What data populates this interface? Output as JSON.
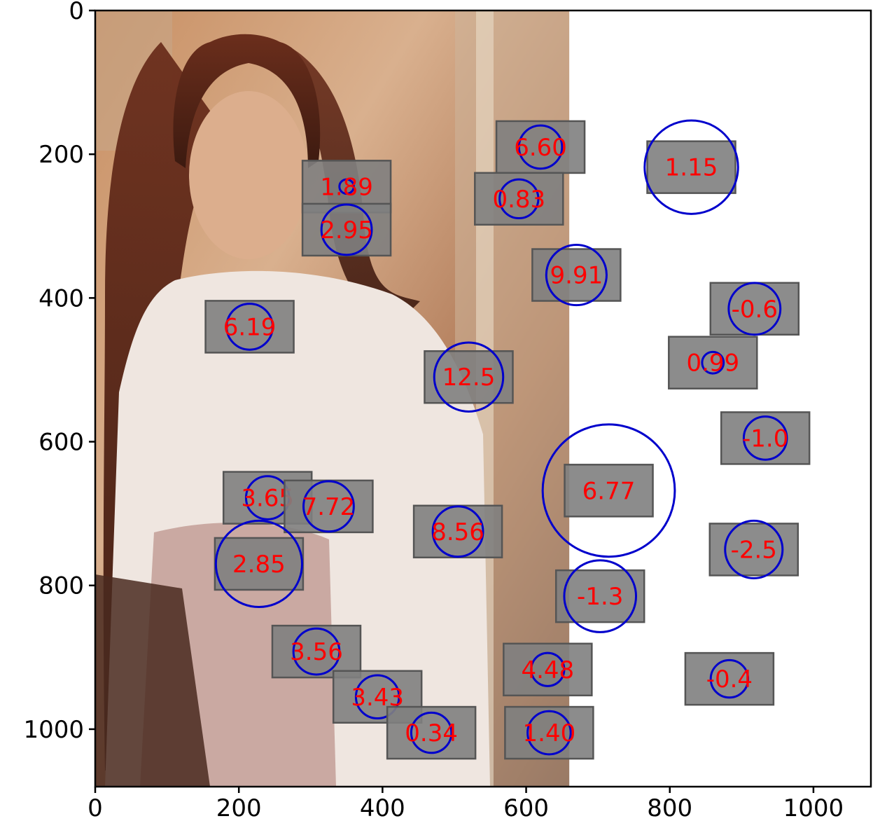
{
  "chart_data": {
    "type": "scatter",
    "title": "",
    "xlabel": "",
    "ylabel": "",
    "xlim": [
      0,
      1080
    ],
    "ylim": [
      1080,
      0
    ],
    "y_inverted": true,
    "grid": false,
    "background_image": {
      "description": "photo",
      "extent_x": [
        0,
        660
      ],
      "extent_y": [
        0,
        1080
      ]
    },
    "xticks": [
      0,
      200,
      400,
      600,
      800,
      1000
    ],
    "yticks": [
      0,
      200,
      400,
      600,
      800,
      1000
    ],
    "label_box_color": "#808080",
    "label_text_color": "#ff0000",
    "circle_color": "#0000cc",
    "points": [
      {
        "x": 620,
        "y": 190,
        "r": 30,
        "label": "6.60"
      },
      {
        "x": 830,
        "y": 218,
        "r": 65,
        "label": "1.15"
      },
      {
        "x": 350,
        "y": 245,
        "r": 10,
        "label": "1.89"
      },
      {
        "x": 590,
        "y": 262,
        "r": 27,
        "label": "0.83"
      },
      {
        "x": 350,
        "y": 305,
        "r": 35,
        "label": "2.95"
      },
      {
        "x": 670,
        "y": 368,
        "r": 42,
        "label": "9.91"
      },
      {
        "x": 918,
        "y": 415,
        "r": 36,
        "label": "-0.6"
      },
      {
        "x": 215,
        "y": 440,
        "r": 32,
        "label": "6.19"
      },
      {
        "x": 860,
        "y": 490,
        "r": 15,
        "label": "0.99"
      },
      {
        "x": 520,
        "y": 510,
        "r": 48,
        "label": "12.5"
      },
      {
        "x": 933,
        "y": 595,
        "r": 30,
        "label": "-1.0"
      },
      {
        "x": 715,
        "y": 668,
        "r": 92,
        "label": "6.77"
      },
      {
        "x": 240,
        "y": 678,
        "r": 30,
        "label": "3.65"
      },
      {
        "x": 325,
        "y": 690,
        "r": 35,
        "label": "7.72"
      },
      {
        "x": 505,
        "y": 725,
        "r": 35,
        "label": "8.56"
      },
      {
        "x": 917,
        "y": 750,
        "r": 40,
        "label": "-2.5"
      },
      {
        "x": 228,
        "y": 770,
        "r": 60,
        "label": "2.85"
      },
      {
        "x": 703,
        "y": 815,
        "r": 50,
        "label": "-1.3"
      },
      {
        "x": 308,
        "y": 892,
        "r": 32,
        "label": "3.56"
      },
      {
        "x": 630,
        "y": 917,
        "r": 23,
        "label": "4.48"
      },
      {
        "x": 883,
        "y": 930,
        "r": 26,
        "label": "-0.4"
      },
      {
        "x": 393,
        "y": 955,
        "r": 30,
        "label": "3.43"
      },
      {
        "x": 632,
        "y": 1005,
        "r": 30,
        "label": "1.40"
      },
      {
        "x": 468,
        "y": 1005,
        "r": 28,
        "label": "0.34"
      }
    ]
  }
}
